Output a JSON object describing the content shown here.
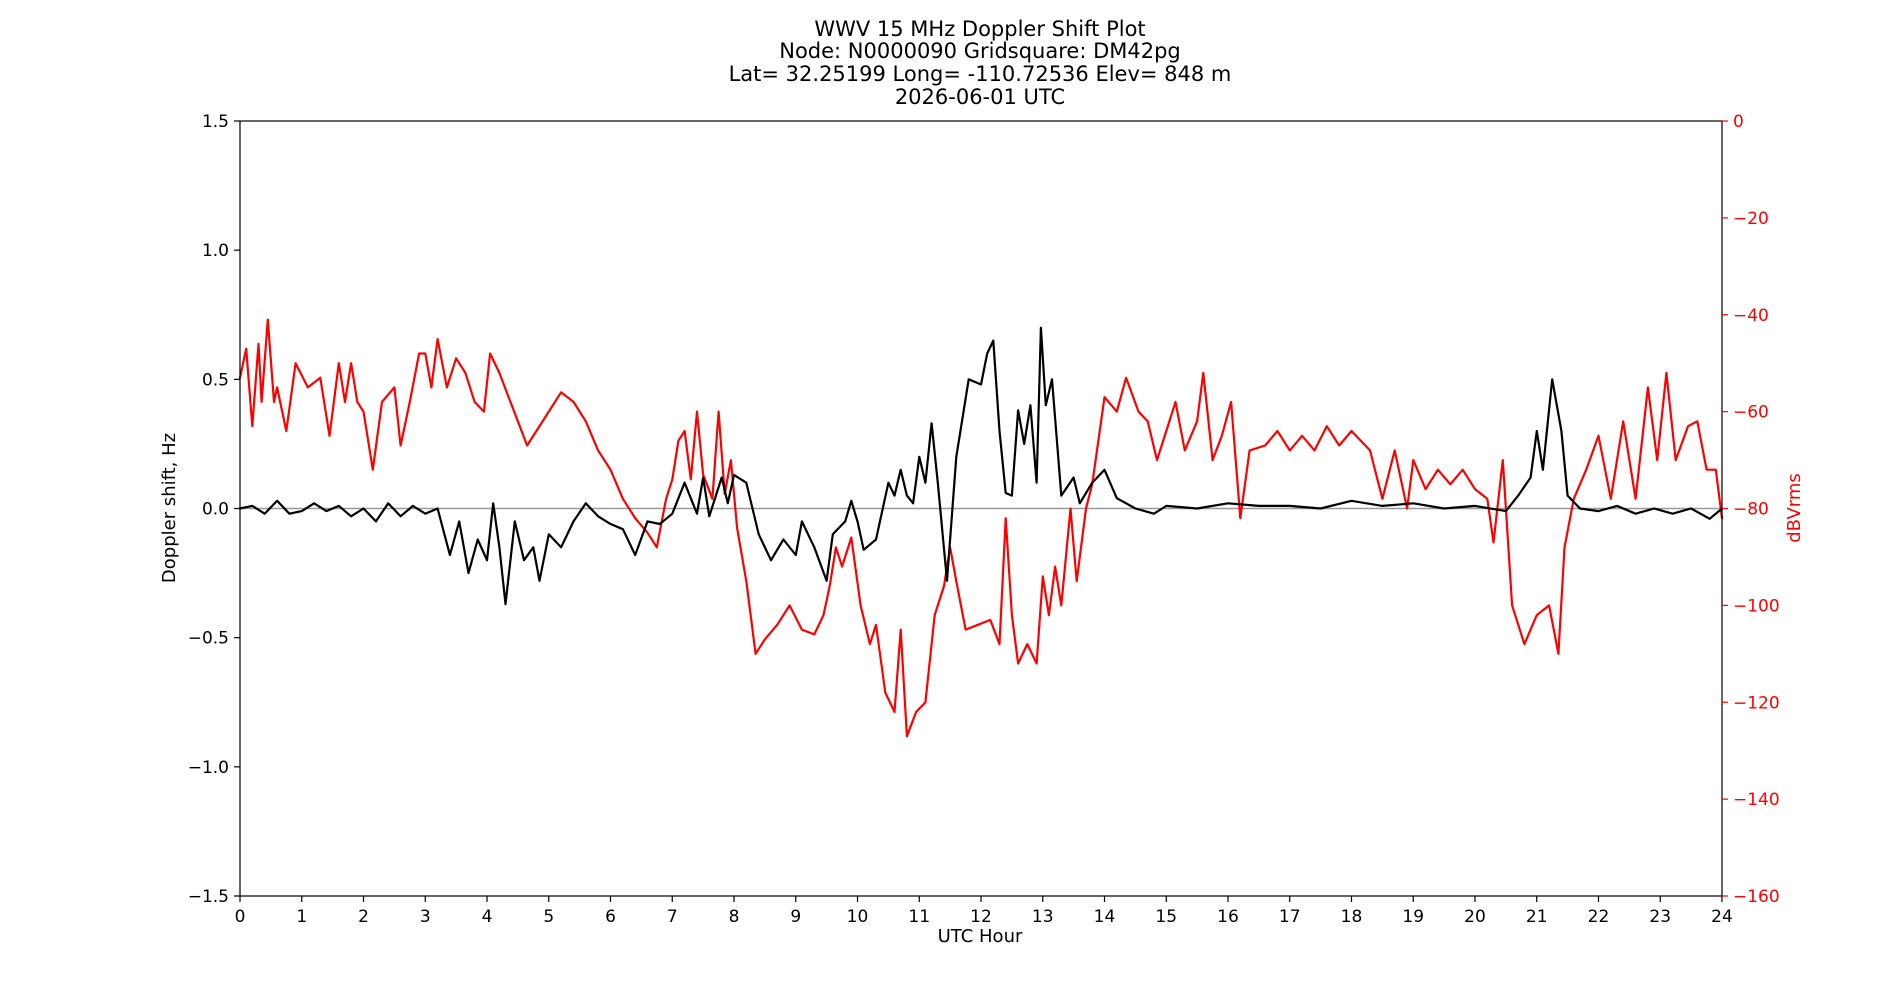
{
  "chart_data": {
    "type": "line",
    "title_lines": [
      "WWV 15 MHz Doppler Shift Plot",
      "Node:  N0000090     Gridsquare:  DM42pg",
      "Lat= 32.25199    Long= -110.72536    Elev= 848 m",
      "2026-06-01  UTC"
    ],
    "xlabel": "UTC Hour",
    "ylabel": "Doppler shift, Hz",
    "y2label": "dBVrms",
    "xlim": [
      0,
      24
    ],
    "ylim": [
      -1.5,
      1.5
    ],
    "y2lim": [
      -160,
      0
    ],
    "xticks": [
      "0",
      "1",
      "2",
      "3",
      "4",
      "5",
      "6",
      "7",
      "8",
      "9",
      "10",
      "11",
      "12",
      "13",
      "14",
      "15",
      "16",
      "17",
      "18",
      "19",
      "20",
      "21",
      "22",
      "23",
      "24"
    ],
    "yticks": [
      "1.5",
      "1.0",
      "0.5",
      "0.0",
      "−0.5",
      "−1.0",
      "−1.5"
    ],
    "y2ticks": [
      "0",
      "−20",
      "−40",
      "−60",
      "−80",
      "−100",
      "−120",
      "−140",
      "−160"
    ],
    "reference_line_y": 0,
    "colors": {
      "doppler": "#000000",
      "power": "#ff0000",
      "reference": "#999999"
    },
    "series": [
      {
        "axis": "left",
        "color": "#000000",
        "points": [
          [
            0,
            0
          ],
          [
            0.2,
            0.01
          ],
          [
            0.4,
            -0.02
          ],
          [
            0.6,
            0.03
          ],
          [
            0.8,
            -0.02
          ],
          [
            1.0,
            -0.01
          ],
          [
            1.2,
            0.02
          ],
          [
            1.4,
            -0.01
          ],
          [
            1.6,
            0.01
          ],
          [
            1.8,
            -0.03
          ],
          [
            2.0,
            0.0
          ],
          [
            2.2,
            -0.05
          ],
          [
            2.4,
            0.02
          ],
          [
            2.6,
            -0.03
          ],
          [
            2.8,
            0.01
          ],
          [
            3.0,
            -0.02
          ],
          [
            3.2,
            0.0
          ],
          [
            3.4,
            -0.18
          ],
          [
            3.55,
            -0.05
          ],
          [
            3.7,
            -0.25
          ],
          [
            3.85,
            -0.12
          ],
          [
            4.0,
            -0.2
          ],
          [
            4.1,
            0.02
          ],
          [
            4.2,
            -0.15
          ],
          [
            4.3,
            -0.37
          ],
          [
            4.45,
            -0.05
          ],
          [
            4.6,
            -0.2
          ],
          [
            4.75,
            -0.15
          ],
          [
            4.85,
            -0.28
          ],
          [
            5.0,
            -0.1
          ],
          [
            5.2,
            -0.15
          ],
          [
            5.4,
            -0.05
          ],
          [
            5.6,
            0.02
          ],
          [
            5.8,
            -0.03
          ],
          [
            6.0,
            -0.06
          ],
          [
            6.2,
            -0.08
          ],
          [
            6.4,
            -0.18
          ],
          [
            6.6,
            -0.05
          ],
          [
            6.8,
            -0.06
          ],
          [
            7.0,
            -0.02
          ],
          [
            7.2,
            0.1
          ],
          [
            7.4,
            -0.02
          ],
          [
            7.5,
            0.12
          ],
          [
            7.6,
            -0.03
          ],
          [
            7.8,
            0.12
          ],
          [
            7.9,
            0.02
          ],
          [
            8.0,
            0.13
          ],
          [
            8.2,
            0.1
          ],
          [
            8.4,
            -0.1
          ],
          [
            8.6,
            -0.2
          ],
          [
            8.8,
            -0.12
          ],
          [
            9.0,
            -0.18
          ],
          [
            9.1,
            -0.05
          ],
          [
            9.3,
            -0.15
          ],
          [
            9.5,
            -0.28
          ],
          [
            9.6,
            -0.1
          ],
          [
            9.8,
            -0.05
          ],
          [
            9.9,
            0.03
          ],
          [
            10.0,
            -0.05
          ],
          [
            10.1,
            -0.16
          ],
          [
            10.3,
            -0.12
          ],
          [
            10.5,
            0.1
          ],
          [
            10.6,
            0.05
          ],
          [
            10.7,
            0.15
          ],
          [
            10.8,
            0.05
          ],
          [
            10.9,
            0.02
          ],
          [
            11.0,
            0.2
          ],
          [
            11.1,
            0.1
          ],
          [
            11.2,
            0.33
          ],
          [
            11.3,
            0.1
          ],
          [
            11.45,
            -0.28
          ],
          [
            11.6,
            0.2
          ],
          [
            11.8,
            0.5
          ],
          [
            12.0,
            0.48
          ],
          [
            12.1,
            0.6
          ],
          [
            12.2,
            0.65
          ],
          [
            12.3,
            0.3
          ],
          [
            12.4,
            0.06
          ],
          [
            12.5,
            0.05
          ],
          [
            12.6,
            0.38
          ],
          [
            12.7,
            0.25
          ],
          [
            12.8,
            0.4
          ],
          [
            12.9,
            0.1
          ],
          [
            12.97,
            0.7
          ],
          [
            13.05,
            0.4
          ],
          [
            13.15,
            0.5
          ],
          [
            13.3,
            0.05
          ],
          [
            13.5,
            0.12
          ],
          [
            13.6,
            0.02
          ],
          [
            13.8,
            0.1
          ],
          [
            14.0,
            0.15
          ],
          [
            14.2,
            0.04
          ],
          [
            14.5,
            0.0
          ],
          [
            14.8,
            -0.02
          ],
          [
            15.0,
            0.01
          ],
          [
            15.5,
            0.0
          ],
          [
            16.0,
            0.02
          ],
          [
            16.5,
            0.01
          ],
          [
            17.0,
            0.01
          ],
          [
            17.5,
            0.0
          ],
          [
            18.0,
            0.03
          ],
          [
            18.5,
            0.01
          ],
          [
            19.0,
            0.02
          ],
          [
            19.5,
            0.0
          ],
          [
            20.0,
            0.01
          ],
          [
            20.5,
            -0.01
          ],
          [
            20.7,
            0.05
          ],
          [
            20.9,
            0.12
          ],
          [
            21.0,
            0.3
          ],
          [
            21.1,
            0.15
          ],
          [
            21.25,
            0.5
          ],
          [
            21.4,
            0.3
          ],
          [
            21.5,
            0.05
          ],
          [
            21.7,
            0.0
          ],
          [
            22.0,
            -0.01
          ],
          [
            22.3,
            0.01
          ],
          [
            22.6,
            -0.02
          ],
          [
            22.9,
            0.0
          ],
          [
            23.2,
            -0.02
          ],
          [
            23.5,
            0.0
          ],
          [
            23.8,
            -0.04
          ],
          [
            24.0,
            0.0
          ]
        ]
      },
      {
        "axis": "right",
        "color": "#ff0000",
        "points": [
          [
            0,
            -53
          ],
          [
            0.1,
            -47
          ],
          [
            0.2,
            -63
          ],
          [
            0.3,
            -46
          ],
          [
            0.35,
            -58
          ],
          [
            0.45,
            -41
          ],
          [
            0.55,
            -58
          ],
          [
            0.6,
            -55
          ],
          [
            0.75,
            -64
          ],
          [
            0.9,
            -50
          ],
          [
            1.1,
            -55
          ],
          [
            1.3,
            -53
          ],
          [
            1.45,
            -65
          ],
          [
            1.6,
            -50
          ],
          [
            1.7,
            -58
          ],
          [
            1.8,
            -50
          ],
          [
            1.9,
            -58
          ],
          [
            2.0,
            -60
          ],
          [
            2.15,
            -72
          ],
          [
            2.3,
            -58
          ],
          [
            2.5,
            -55
          ],
          [
            2.6,
            -67
          ],
          [
            2.75,
            -58
          ],
          [
            2.9,
            -48
          ],
          [
            3.0,
            -48
          ],
          [
            3.1,
            -55
          ],
          [
            3.2,
            -45
          ],
          [
            3.35,
            -55
          ],
          [
            3.5,
            -49
          ],
          [
            3.65,
            -52
          ],
          [
            3.8,
            -58
          ],
          [
            3.95,
            -60
          ],
          [
            4.05,
            -48
          ],
          [
            4.2,
            -52
          ],
          [
            4.35,
            -57
          ],
          [
            4.5,
            -62
          ],
          [
            4.65,
            -67
          ],
          [
            4.8,
            -64
          ],
          [
            5.0,
            -60
          ],
          [
            5.2,
            -56
          ],
          [
            5.4,
            -58
          ],
          [
            5.6,
            -62
          ],
          [
            5.8,
            -68
          ],
          [
            6.0,
            -72
          ],
          [
            6.2,
            -78
          ],
          [
            6.4,
            -82
          ],
          [
            6.6,
            -85
          ],
          [
            6.75,
            -88
          ],
          [
            6.9,
            -78
          ],
          [
            7.0,
            -74
          ],
          [
            7.1,
            -66
          ],
          [
            7.2,
            -64
          ],
          [
            7.3,
            -74
          ],
          [
            7.4,
            -60
          ],
          [
            7.5,
            -73
          ],
          [
            7.65,
            -78
          ],
          [
            7.75,
            -60
          ],
          [
            7.85,
            -77
          ],
          [
            7.95,
            -70
          ],
          [
            8.05,
            -84
          ],
          [
            8.2,
            -95
          ],
          [
            8.35,
            -110
          ],
          [
            8.5,
            -107
          ],
          [
            8.7,
            -104
          ],
          [
            8.9,
            -100
          ],
          [
            9.1,
            -105
          ],
          [
            9.3,
            -106
          ],
          [
            9.45,
            -102
          ],
          [
            9.55,
            -96
          ],
          [
            9.65,
            -88
          ],
          [
            9.75,
            -92
          ],
          [
            9.9,
            -86
          ],
          [
            10.05,
            -100
          ],
          [
            10.2,
            -108
          ],
          [
            10.3,
            -104
          ],
          [
            10.45,
            -118
          ],
          [
            10.6,
            -122
          ],
          [
            10.7,
            -105
          ],
          [
            10.8,
            -127
          ],
          [
            10.95,
            -122
          ],
          [
            11.1,
            -120
          ],
          [
            11.25,
            -102
          ],
          [
            11.4,
            -96
          ],
          [
            11.5,
            -88
          ],
          [
            11.6,
            -95
          ],
          [
            11.75,
            -105
          ],
          [
            11.95,
            -104
          ],
          [
            12.15,
            -103
          ],
          [
            12.3,
            -108
          ],
          [
            12.4,
            -82
          ],
          [
            12.5,
            -102
          ],
          [
            12.6,
            -112
          ],
          [
            12.75,
            -108
          ],
          [
            12.9,
            -112
          ],
          [
            13.0,
            -94
          ],
          [
            13.1,
            -102
          ],
          [
            13.2,
            -92
          ],
          [
            13.3,
            -100
          ],
          [
            13.45,
            -80
          ],
          [
            13.55,
            -95
          ],
          [
            13.7,
            -80
          ],
          [
            13.8,
            -75
          ],
          [
            14.0,
            -57
          ],
          [
            14.2,
            -60
          ],
          [
            14.35,
            -53
          ],
          [
            14.55,
            -60
          ],
          [
            14.7,
            -62
          ],
          [
            14.85,
            -70
          ],
          [
            15.0,
            -64
          ],
          [
            15.15,
            -58
          ],
          [
            15.3,
            -68
          ],
          [
            15.5,
            -62
          ],
          [
            15.6,
            -52
          ],
          [
            15.75,
            -70
          ],
          [
            15.9,
            -65
          ],
          [
            16.05,
            -58
          ],
          [
            16.2,
            -82
          ],
          [
            16.35,
            -68
          ],
          [
            16.6,
            -67
          ],
          [
            16.8,
            -64
          ],
          [
            17.0,
            -68
          ],
          [
            17.2,
            -65
          ],
          [
            17.4,
            -68
          ],
          [
            17.6,
            -63
          ],
          [
            17.8,
            -67
          ],
          [
            18.0,
            -64
          ],
          [
            18.3,
            -68
          ],
          [
            18.5,
            -78
          ],
          [
            18.7,
            -68
          ],
          [
            18.9,
            -80
          ],
          [
            19.0,
            -70
          ],
          [
            19.2,
            -76
          ],
          [
            19.4,
            -72
          ],
          [
            19.6,
            -75
          ],
          [
            19.8,
            -72
          ],
          [
            20.0,
            -76
          ],
          [
            20.2,
            -78
          ],
          [
            20.3,
            -87
          ],
          [
            20.45,
            -70
          ],
          [
            20.6,
            -100
          ],
          [
            20.8,
            -108
          ],
          [
            21.0,
            -102
          ],
          [
            21.2,
            -100
          ],
          [
            21.35,
            -110
          ],
          [
            21.45,
            -88
          ],
          [
            21.6,
            -78
          ],
          [
            21.8,
            -72
          ],
          [
            22.0,
            -65
          ],
          [
            22.2,
            -78
          ],
          [
            22.4,
            -62
          ],
          [
            22.6,
            -78
          ],
          [
            22.8,
            -55
          ],
          [
            22.95,
            -70
          ],
          [
            23.1,
            -52
          ],
          [
            23.25,
            -70
          ],
          [
            23.45,
            -63
          ],
          [
            23.6,
            -62
          ],
          [
            23.75,
            -72
          ],
          [
            23.9,
            -72
          ],
          [
            24.0,
            -82
          ]
        ]
      }
    ]
  }
}
